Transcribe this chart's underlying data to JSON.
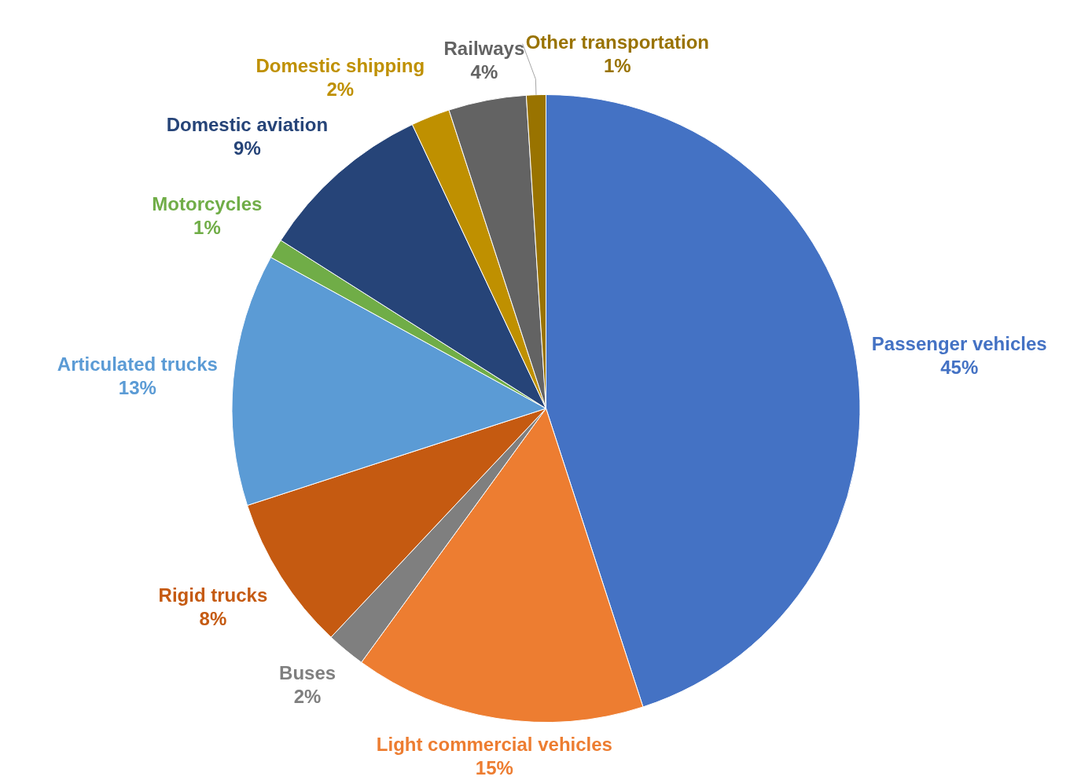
{
  "chart_data": {
    "type": "pie",
    "categories": [
      "Passenger vehicles",
      "Light commercial vehicles",
      "Buses",
      "Rigid trucks",
      "Articulated trucks",
      "Motorcycles",
      "Domestic aviation",
      "Domestic shipping",
      "Railways",
      "Other transportation"
    ],
    "values": [
      45,
      15,
      2,
      8,
      13,
      1,
      9,
      2,
      4,
      1
    ],
    "value_labels": [
      "45%",
      "15%",
      "2%",
      "8%",
      "13%",
      "1%",
      "9%",
      "2%",
      "4%",
      "1%"
    ],
    "colors": [
      "#4472c4",
      "#ed7d31",
      "#7f7f7f",
      "#c55a11",
      "#5b9bd5",
      "#70ad47",
      "#264478",
      "#bf9000",
      "#636363",
      "#997300"
    ],
    "legend": false
  }
}
